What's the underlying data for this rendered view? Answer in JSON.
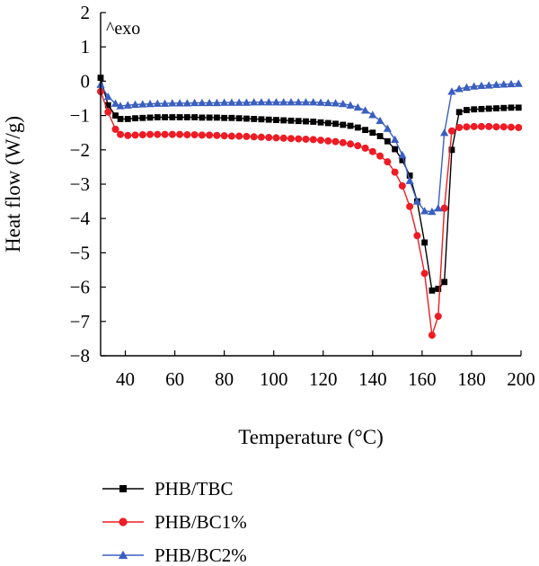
{
  "chart_data": {
    "type": "line",
    "title": "",
    "xlabel": "Temperature (°C)",
    "ylabel": "Heat flow (W/g)",
    "annotation": "^exo",
    "xlim": [
      30,
      200
    ],
    "ylim": [
      -8,
      2
    ],
    "xticks": [
      40,
      60,
      80,
      100,
      120,
      140,
      160,
      180,
      200
    ],
    "yticks": [
      2,
      1,
      0,
      -1,
      -2,
      -3,
      -4,
      -5,
      -6,
      -7,
      -8
    ],
    "xtick_labels": [
      "40",
      "60",
      "80",
      "100",
      "120",
      "140",
      "160",
      "180",
      "200"
    ],
    "ytick_labels": [
      "2",
      "1",
      "0",
      "−1",
      "−2",
      "−3",
      "−4",
      "−5",
      "−6",
      "−7",
      "−8"
    ],
    "grid": false,
    "legend_position": "bottom-left",
    "series": [
      {
        "name": "PHB/TBC",
        "color": "#000000",
        "marker": "square",
        "x": [
          30,
          33,
          36,
          38,
          41,
          44,
          47,
          50,
          53,
          56,
          59,
          62,
          65,
          68,
          71,
          74,
          77,
          80,
          83,
          86,
          89,
          92,
          95,
          98,
          101,
          104,
          107,
          110,
          113,
          116,
          119,
          122,
          125,
          128,
          131,
          134,
          137,
          140,
          143,
          146,
          149,
          152,
          155,
          158,
          161,
          164,
          166.5,
          169,
          172,
          175,
          178,
          181,
          184,
          187,
          190,
          193,
          196,
          199
        ],
        "values": [
          0.1,
          -0.7,
          -1.0,
          -1.1,
          -1.1,
          -1.08,
          -1.07,
          -1.06,
          -1.05,
          -1.05,
          -1.05,
          -1.05,
          -1.05,
          -1.05,
          -1.06,
          -1.06,
          -1.06,
          -1.07,
          -1.07,
          -1.08,
          -1.09,
          -1.1,
          -1.11,
          -1.12,
          -1.13,
          -1.14,
          -1.15,
          -1.16,
          -1.17,
          -1.18,
          -1.2,
          -1.22,
          -1.24,
          -1.27,
          -1.3,
          -1.35,
          -1.42,
          -1.5,
          -1.6,
          -1.75,
          -1.98,
          -2.3,
          -2.75,
          -3.5,
          -4.7,
          -6.1,
          -6.05,
          -5.85,
          -2.0,
          -0.9,
          -0.84,
          -0.82,
          -0.81,
          -0.8,
          -0.79,
          -0.78,
          -0.77,
          -0.77
        ]
      },
      {
        "name": "PHB/BC1%",
        "color": "#ee1c25",
        "marker": "circle",
        "x": [
          30,
          33,
          36,
          38,
          41,
          44,
          47,
          50,
          53,
          56,
          59,
          62,
          65,
          68,
          71,
          74,
          77,
          80,
          83,
          86,
          89,
          92,
          95,
          98,
          101,
          104,
          107,
          110,
          113,
          116,
          119,
          122,
          125,
          128,
          131,
          134,
          137,
          140,
          143,
          146,
          149,
          152,
          155,
          158,
          161,
          164,
          166.5,
          169,
          172,
          175,
          178,
          181,
          184,
          187,
          190,
          193,
          196,
          199
        ],
        "values": [
          -0.3,
          -0.9,
          -1.4,
          -1.55,
          -1.58,
          -1.57,
          -1.56,
          -1.55,
          -1.55,
          -1.55,
          -1.55,
          -1.55,
          -1.56,
          -1.56,
          -1.57,
          -1.57,
          -1.58,
          -1.59,
          -1.6,
          -1.6,
          -1.61,
          -1.62,
          -1.63,
          -1.64,
          -1.65,
          -1.66,
          -1.67,
          -1.68,
          -1.69,
          -1.7,
          -1.72,
          -1.74,
          -1.76,
          -1.79,
          -1.83,
          -1.88,
          -1.95,
          -2.05,
          -2.18,
          -2.35,
          -2.65,
          -3.05,
          -3.65,
          -4.5,
          -5.6,
          -7.4,
          -6.85,
          -3.7,
          -1.45,
          -1.35,
          -1.33,
          -1.32,
          -1.32,
          -1.32,
          -1.33,
          -1.33,
          -1.34,
          -1.35
        ]
      },
      {
        "name": "PHB/BC2%",
        "color": "#3b5fc0",
        "marker": "triangle",
        "x": [
          30,
          33,
          36,
          38,
          41,
          44,
          47,
          50,
          53,
          56,
          59,
          62,
          65,
          68,
          71,
          74,
          77,
          80,
          83,
          86,
          89,
          92,
          95,
          98,
          101,
          104,
          107,
          110,
          113,
          116,
          119,
          122,
          125,
          128,
          131,
          134,
          137,
          140,
          143,
          146,
          149,
          152,
          155,
          158,
          161,
          164,
          166.5,
          169,
          172,
          175,
          178,
          181,
          184,
          187,
          190,
          193,
          196,
          199
        ],
        "values": [
          -0.1,
          -0.45,
          -0.65,
          -0.72,
          -0.7,
          -0.68,
          -0.67,
          -0.66,
          -0.65,
          -0.65,
          -0.64,
          -0.64,
          -0.64,
          -0.63,
          -0.63,
          -0.63,
          -0.63,
          -0.62,
          -0.62,
          -0.62,
          -0.62,
          -0.61,
          -0.61,
          -0.61,
          -0.61,
          -0.61,
          -0.61,
          -0.61,
          -0.61,
          -0.61,
          -0.62,
          -0.63,
          -0.64,
          -0.66,
          -0.7,
          -0.76,
          -0.85,
          -0.98,
          -1.15,
          -1.38,
          -1.7,
          -2.15,
          -2.9,
          -3.5,
          -3.78,
          -3.8,
          -3.7,
          -1.5,
          -0.3,
          -0.22,
          -0.18,
          -0.15,
          -0.13,
          -0.12,
          -0.1,
          -0.09,
          -0.08,
          -0.07
        ]
      }
    ]
  }
}
